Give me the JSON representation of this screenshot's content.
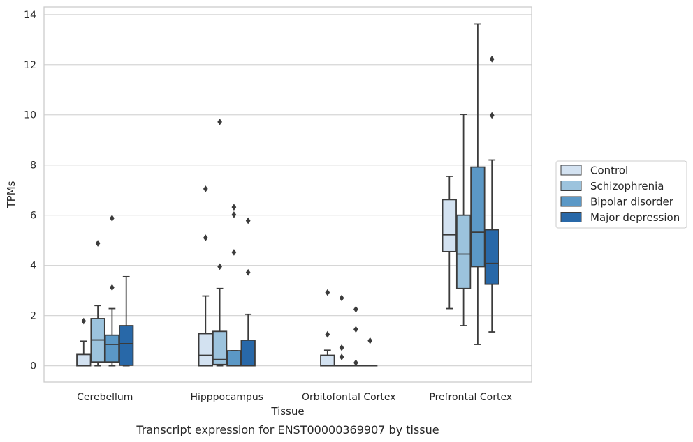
{
  "caption": "Transcript expression for ENST00000369907 by tissue",
  "chart_data": {
    "type": "box",
    "xlabel": "Tissue",
    "ylabel": "TPMs",
    "ylim": [
      -0.65,
      14.3
    ],
    "yticks": [
      0,
      2,
      4,
      6,
      8,
      10,
      12,
      14
    ],
    "grid": "horizontal",
    "legend_position": "right",
    "categories": [
      "Cerebellum",
      "Hipppocampus",
      "Orbitofontal Cortex",
      "Prefrontal Cortex"
    ],
    "series": [
      {
        "name": "Control",
        "color": "#d3e2f1",
        "boxes": [
          {
            "whislo": 0,
            "q1": 0,
            "med": 0,
            "q3": 0.45,
            "whishi": 0.98,
            "fliers": [
              1.78
            ]
          },
          {
            "whislo": 0,
            "q1": 0,
            "med": 0.42,
            "q3": 1.28,
            "whishi": 2.78,
            "fliers": [
              5.1,
              7.05
            ]
          },
          {
            "whislo": 0,
            "q1": 0,
            "med": 0,
            "q3": 0.42,
            "whishi": 0.62,
            "fliers": [
              1.25,
              2.92
            ]
          },
          {
            "whislo": 2.28,
            "q1": 4.55,
            "med": 5.22,
            "q3": 6.62,
            "whishi": 7.55,
            "fliers": []
          }
        ]
      },
      {
        "name": "Schizophrenia",
        "color": "#9cc3dd",
        "boxes": [
          {
            "whislo": 0,
            "q1": 0.15,
            "med": 1.03,
            "q3": 1.88,
            "whishi": 2.4,
            "fliers": [
              4.88
            ]
          },
          {
            "whislo": 0,
            "q1": 0.05,
            "med": 0.25,
            "q3": 1.37,
            "whishi": 3.08,
            "fliers": [
              3.95,
              9.72
            ]
          },
          {
            "whislo": 0,
            "q1": 0,
            "med": 0,
            "q3": 0,
            "whishi": 0,
            "fliers": [
              0.35,
              0.72,
              2.7
            ]
          },
          {
            "whislo": 1.6,
            "q1": 3.08,
            "med": 4.45,
            "q3": 6.0,
            "whishi": 10.02,
            "fliers": []
          }
        ]
      },
      {
        "name": "Bipolar disorder",
        "color": "#5b98c6",
        "boxes": [
          {
            "whislo": 0,
            "q1": 0.15,
            "med": 0.85,
            "q3": 1.22,
            "whishi": 2.28,
            "fliers": [
              3.12,
              5.88
            ]
          },
          {
            "whislo": 0,
            "q1": 0,
            "med": 0,
            "q3": 0.6,
            "whishi": 0.6,
            "fliers": [
              4.52,
              6.02,
              6.32
            ]
          },
          {
            "whislo": 0,
            "q1": 0,
            "med": 0,
            "q3": 0,
            "whishi": 0,
            "fliers": [
              0.12,
              1.45,
              2.25
            ]
          },
          {
            "whislo": 0.85,
            "q1": 3.95,
            "med": 5.32,
            "q3": 7.92,
            "whishi": 13.62,
            "fliers": []
          }
        ]
      },
      {
        "name": "Major depression",
        "color": "#2868a8",
        "boxes": [
          {
            "whislo": 0,
            "q1": 0.02,
            "med": 0.88,
            "q3": 1.6,
            "whishi": 3.55,
            "fliers": []
          },
          {
            "whislo": 0,
            "q1": 0,
            "med": 0,
            "q3": 1.02,
            "whishi": 2.05,
            "fliers": [
              3.72,
              5.78
            ]
          },
          {
            "whislo": 0,
            "q1": 0,
            "med": 0,
            "q3": 0,
            "whishi": 0,
            "fliers": [
              1.0
            ]
          },
          {
            "whislo": 1.35,
            "q1": 3.25,
            "med": 4.08,
            "q3": 5.42,
            "whishi": 8.2,
            "fliers": [
              9.98,
              12.22
            ]
          }
        ]
      }
    ]
  }
}
